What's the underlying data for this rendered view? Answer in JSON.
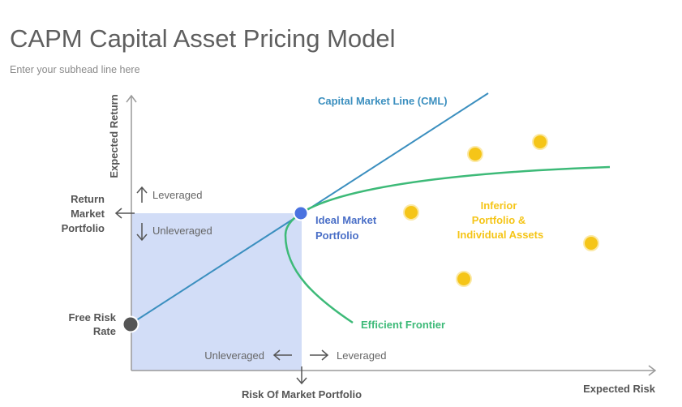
{
  "header": {
    "title": "CAPM Capital Asset Pricing Model",
    "subhead": "Enter your subhead line here"
  },
  "axes": {
    "y_label": "Expected Return",
    "x_label": "Expected Risk"
  },
  "labels": {
    "return_market_line1": "Return",
    "return_market_line2": "Market",
    "return_market_line3": "Portfolio",
    "free_risk_line1": "Free Risk",
    "free_risk_line2": "Rate",
    "risk_market_portfolio": "Risk Of Market Portfolio",
    "leveraged_vertical": "Leveraged",
    "unleveraged_vertical": "Unleveraged",
    "unleveraged_horizontal": "Unleveraged",
    "leveraged_horizontal": "Leveraged",
    "cml": "Capital Market Line (CML)",
    "ideal_line1": "Ideal Market",
    "ideal_line2": "Portfolio",
    "efficient_frontier": "Efficient Frontier",
    "inferior_line1": "Inferior",
    "inferior_line2": "Portfolio &",
    "inferior_line3": "Individual Assets"
  },
  "colors": {
    "cml_line": "#3b8fbf",
    "frontier_curve": "#3dba78",
    "ideal_point": "#4a72e0",
    "free_risk_point": "#555555",
    "inferior_points": "#f5c518",
    "unleveraged_region": "#d2ddf7",
    "axis": "#9a9a9a"
  },
  "icons": {
    "up_arrow": "arrow-up-icon",
    "down_arrow": "arrow-down-icon",
    "left_arrow": "arrow-left-icon",
    "right_arrow": "arrow-right-icon"
  }
}
